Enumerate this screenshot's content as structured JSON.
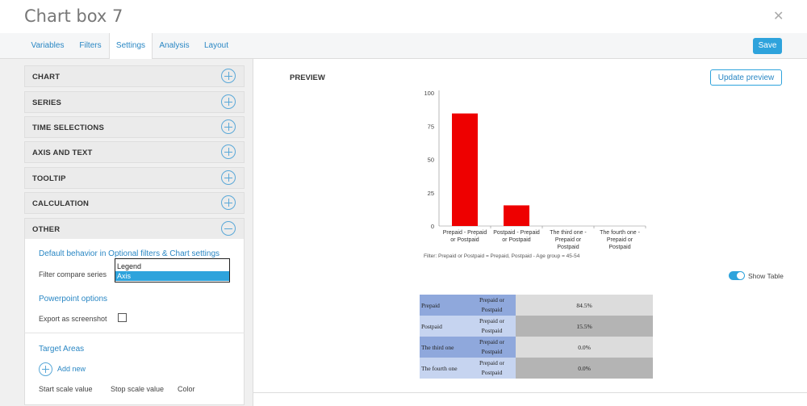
{
  "window": {
    "title": "Chart box 7",
    "close_icon": "close-icon"
  },
  "tabs": [
    {
      "label": "Variables",
      "active": false
    },
    {
      "label": "Filters",
      "active": false
    },
    {
      "label": "Settings",
      "active": true
    },
    {
      "label": "Analysis",
      "active": false
    },
    {
      "label": "Layout",
      "active": false
    }
  ],
  "toolbar": {
    "save_label": "Save"
  },
  "sections": [
    {
      "label": "CHART",
      "icon": "plus-circle-icon"
    },
    {
      "label": "SERIES",
      "icon": "plus-circle-icon"
    },
    {
      "label": "TIME SELECTIONS",
      "icon": "plus-circle-icon"
    },
    {
      "label": "AXIS AND TEXT",
      "icon": "plus-circle-icon"
    },
    {
      "label": "TOOLTIP",
      "icon": "plus-circle-icon"
    },
    {
      "label": "CALCULATION",
      "icon": "plus-circle-icon"
    },
    {
      "label": "OTHER",
      "icon": "minus-circle-icon"
    }
  ],
  "other": {
    "default_behavior_link": "Default behavior in Optional filters & Chart settings",
    "filter_compare_label": "Filter compare series",
    "dropdown_options": [
      "Legend",
      "Axis"
    ],
    "dropdown_selected": "Axis",
    "powerpoint_link": "Powerpoint options",
    "export_label": "Export as screenshot",
    "export_checked": false,
    "target_areas_link": "Target Areas",
    "add_new": "Add new",
    "col_start": "Start scale value",
    "col_stop": "Stop scale value",
    "col_color": "Color"
  },
  "preview": {
    "label": "PREVIEW",
    "update_button": "Update preview",
    "filter_text": "Filter: Prepaid or Postpaid = Prepaid, Postpaid - Age group = 45-54",
    "show_table_label": "Show Table",
    "show_table_on": true
  },
  "chart_data": {
    "type": "bar",
    "categories": [
      [
        "Prepaid - Prepaid",
        "or Postpaid"
      ],
      [
        "Postpaid - Prepaid",
        "or Postpaid"
      ],
      [
        "The third one -",
        "Prepaid or",
        "Postpaid"
      ],
      [
        "The fourth one -",
        "Prepaid or",
        "Postpaid"
      ]
    ],
    "values": [
      84.5,
      15.5,
      0,
      0
    ],
    "yticks": [
      0,
      25,
      50,
      75,
      100
    ],
    "ylim": [
      0,
      100
    ],
    "bar_color": "#ee0000"
  },
  "table": {
    "rows": [
      {
        "name": "Prepaid",
        "group": "Prepaid or Postpaid",
        "value": "84.5%"
      },
      {
        "name": "Postpaid",
        "group": "Prepaid or Postpaid",
        "value": "15.5%"
      },
      {
        "name": "The third one",
        "group": "Prepaid or Postpaid",
        "value": "0.0%"
      },
      {
        "name": "The fourth one",
        "group": "Prepaid or Postpaid",
        "value": "0.0%"
      }
    ],
    "colors": {
      "name_dark": "#8fa8dc",
      "name_light": "#c6d4f0",
      "val_light": "#dcdcdc",
      "val_dark": "#b4b4b4"
    }
  }
}
